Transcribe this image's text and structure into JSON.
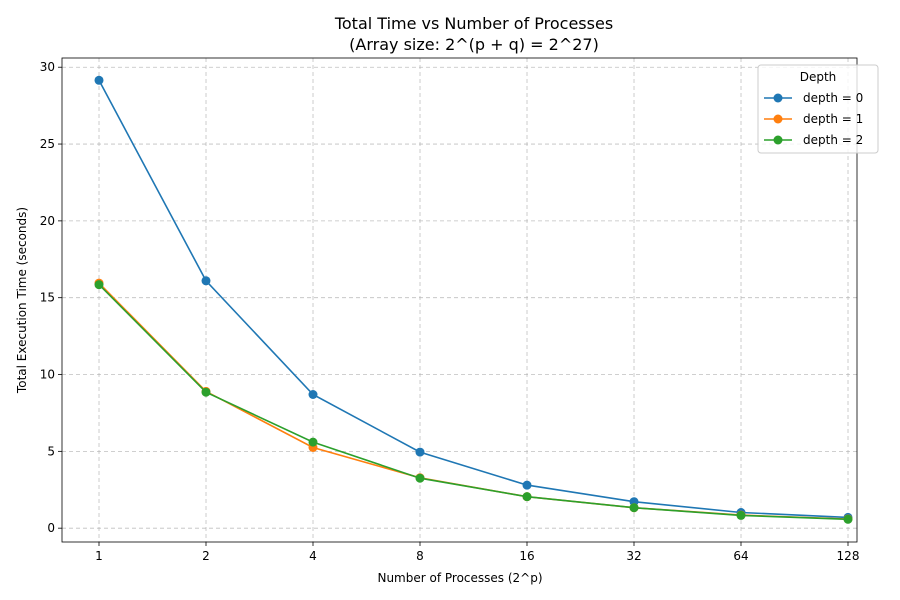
{
  "chart_data": {
    "type": "line",
    "title": "Total Time vs Number of Processes",
    "subtitle": "(Array size: 2^(p + q) = 2^27)",
    "xlabel": "Number of Processes (2^p)",
    "ylabel": "Total Execution Time (seconds)",
    "categories": [
      "1",
      "2",
      "4",
      "8",
      "16",
      "32",
      "64",
      "128"
    ],
    "ylim": [
      -0.9,
      30.6
    ],
    "yticks": [
      0,
      5,
      10,
      15,
      20,
      25,
      30
    ],
    "ytick_labels": [
      "0",
      "5",
      "10",
      "15",
      "20",
      "25",
      "30"
    ],
    "grid": true,
    "legend": {
      "title": "Depth",
      "placement": "top-right"
    },
    "series": [
      {
        "name": "depth = 0",
        "color": "#1f77b4",
        "values": [
          29.15,
          16.1,
          8.7,
          4.95,
          2.8,
          1.72,
          1.02,
          0.7
        ]
      },
      {
        "name": "depth = 1",
        "color": "#ff7f0e",
        "values": [
          15.95,
          8.9,
          5.25,
          3.28,
          2.05,
          1.33,
          0.85,
          0.6
        ]
      },
      {
        "name": "depth = 2",
        "color": "#2ca02c",
        "values": [
          15.85,
          8.85,
          5.6,
          3.25,
          2.05,
          1.33,
          0.83,
          0.58
        ]
      }
    ]
  }
}
